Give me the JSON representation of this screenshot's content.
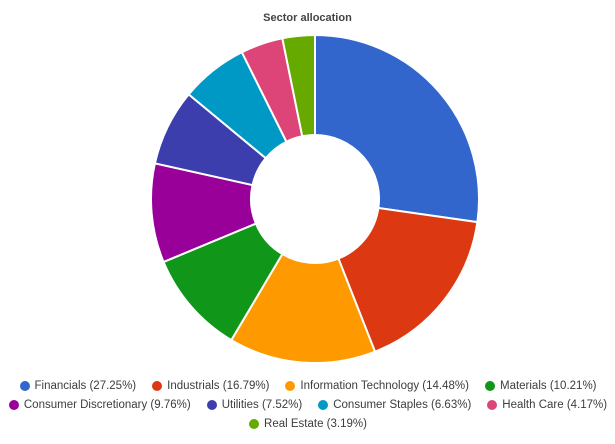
{
  "chart_data": {
    "type": "pie",
    "variant": "donut",
    "title": "Sector allocation",
    "legend_position": "bottom",
    "slices": [
      {
        "label": "Financials",
        "value": 27.25,
        "legend": "Financials (27.25%)",
        "color": "#3366cc"
      },
      {
        "label": "Industrials",
        "value": 16.79,
        "legend": "Industrials (16.79%)",
        "color": "#dc3912"
      },
      {
        "label": "Information Technology",
        "value": 14.48,
        "legend": "Information Technology (14.48%)",
        "color": "#ff9900"
      },
      {
        "label": "Materials",
        "value": 10.21,
        "legend": "Materials (10.21%)",
        "color": "#109618"
      },
      {
        "label": "Consumer Discretionary",
        "value": 9.76,
        "legend": "Consumer Discretionary (9.76%)",
        "color": "#990099"
      },
      {
        "label": "Utilities",
        "value": 7.52,
        "legend": "Utilities (7.52%)",
        "color": "#3b3eac"
      },
      {
        "label": "Consumer Staples",
        "value": 6.63,
        "legend": "Consumer Staples (6.63%)",
        "color": "#0099c6"
      },
      {
        "label": "Health Care",
        "value": 4.17,
        "legend": "Health Care (4.17%)",
        "color": "#dd4477"
      },
      {
        "label": "Real Estate",
        "value": 3.19,
        "legend": "Real Estate (3.19%)",
        "color": "#66aa00"
      }
    ]
  }
}
